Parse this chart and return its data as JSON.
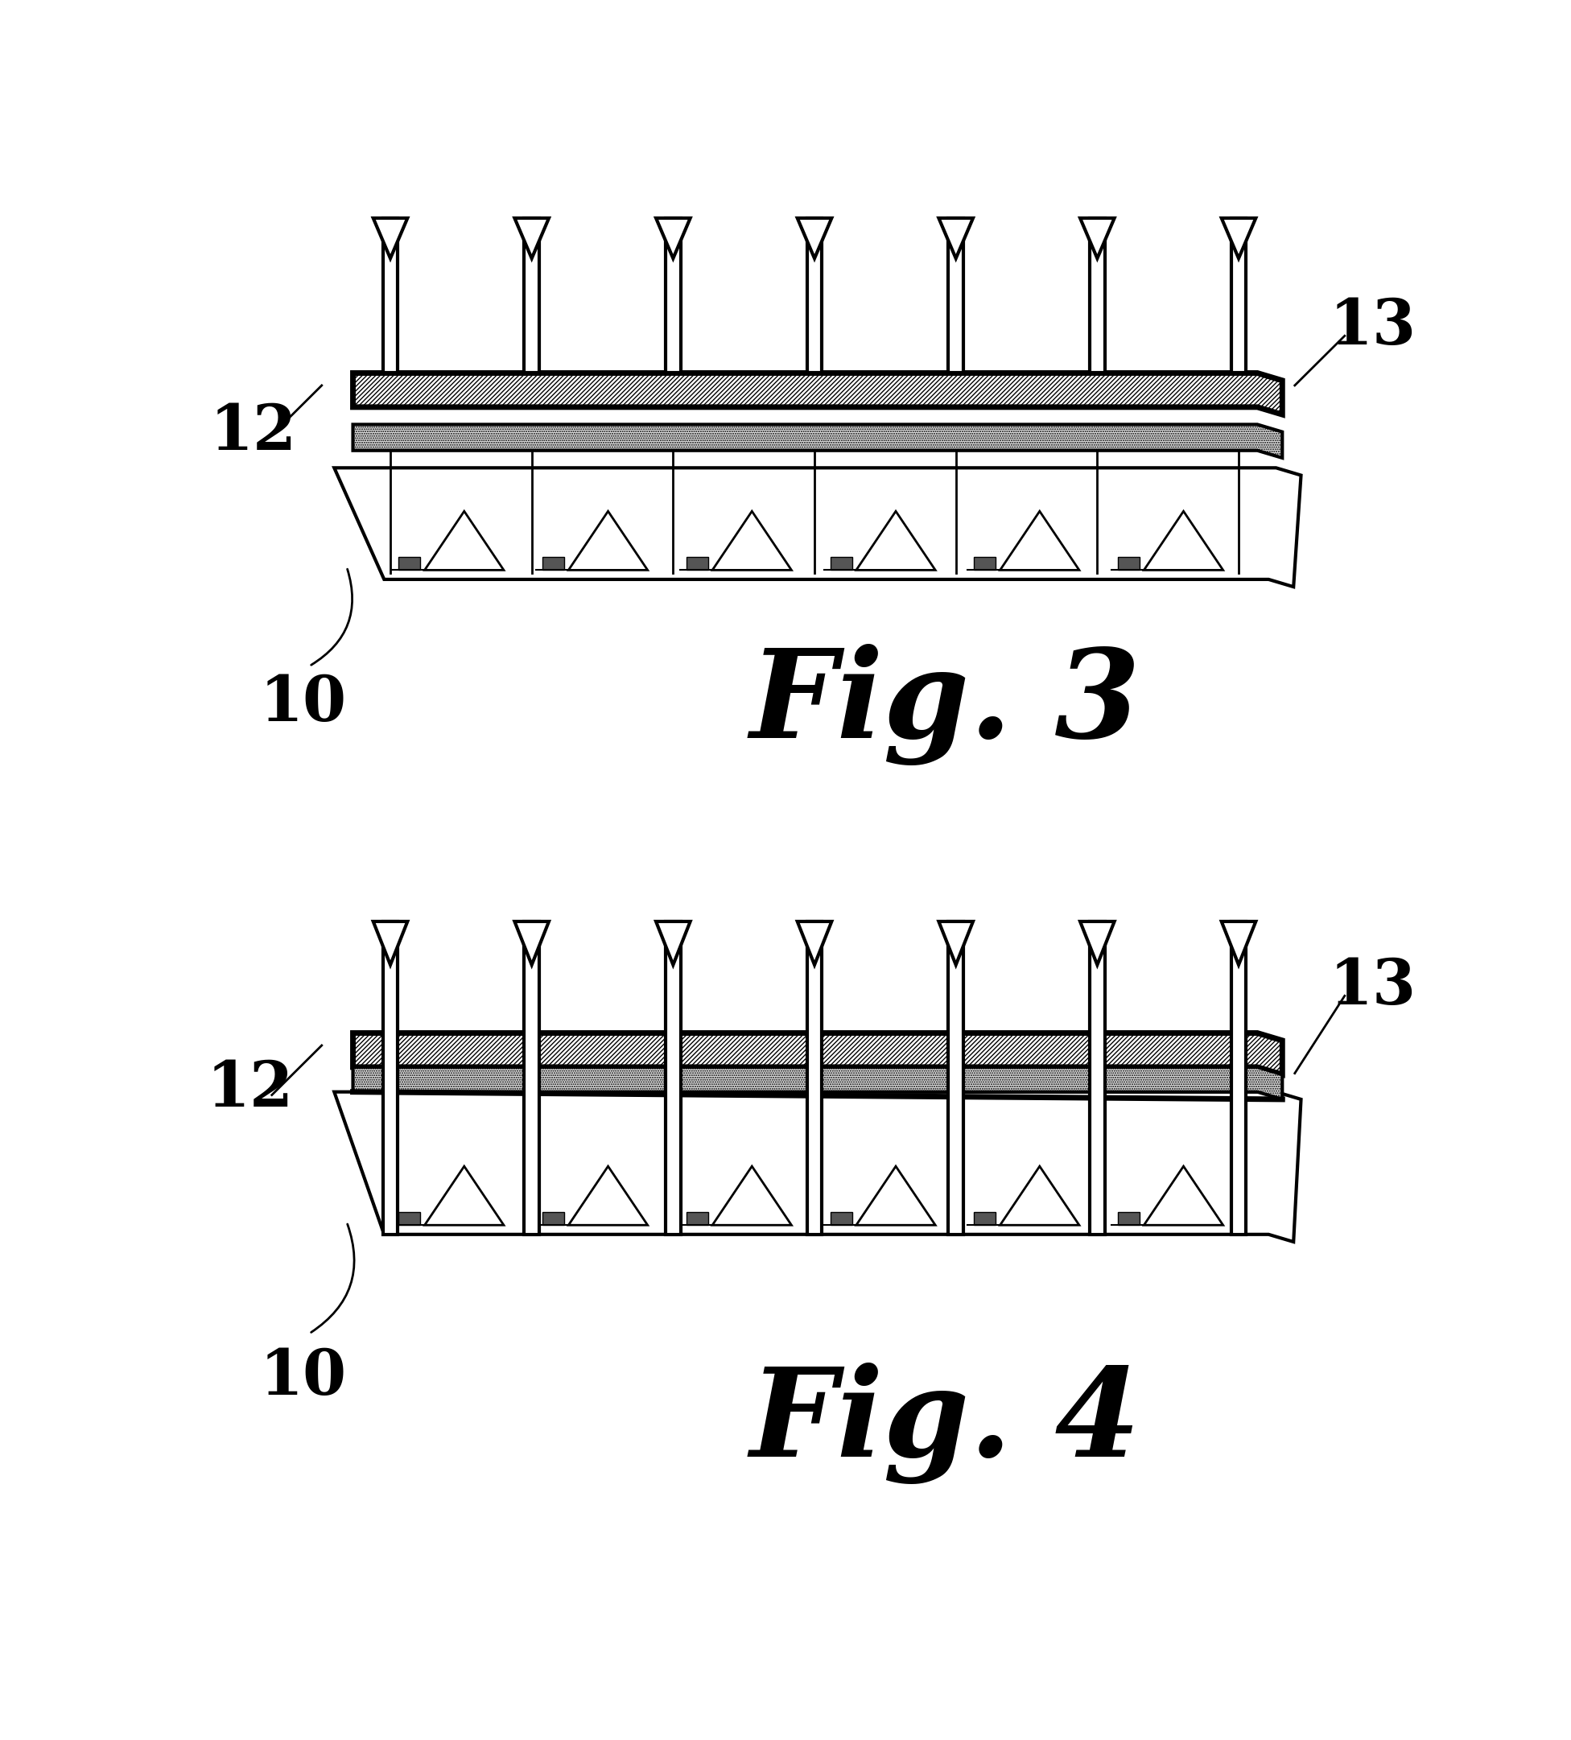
{
  "fig3_title": "Fig. 3",
  "fig4_title": "Fig. 4",
  "label_12": "12",
  "label_13": "13",
  "label_10": "10",
  "bg_color": "#ffffff",
  "line_color": "#000000",
  "n_arrows": 7,
  "n_pins": 7,
  "n_tri": 6,
  "n_led": 6
}
